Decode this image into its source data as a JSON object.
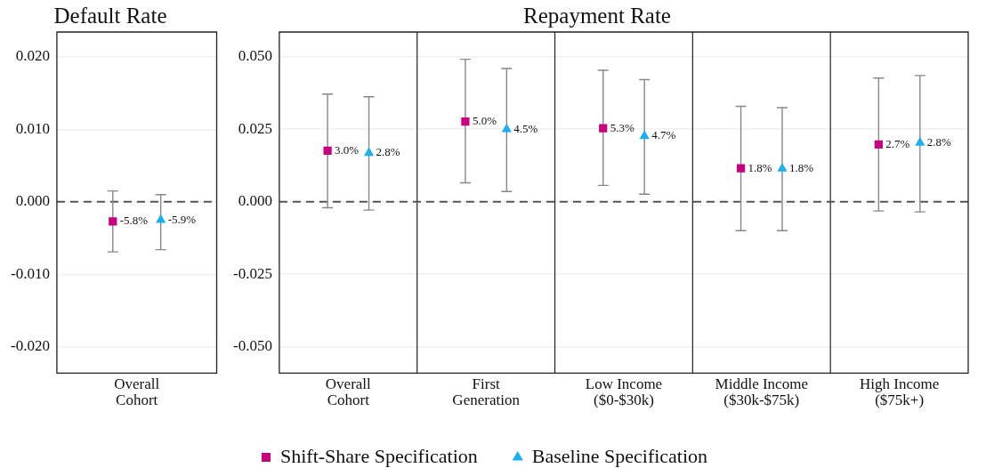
{
  "chart_data": [
    {
      "type": "scatter",
      "title": "Default Rate",
      "categories": [
        "Overall Cohort"
      ],
      "series": [
        {
          "color": "#c8007f",
          "marker": "square",
          "values": [
            -0.0027
          ],
          "errors": [
            [
              -0.0069,
              0.0015
            ]
          ]
        },
        {
          "color": "#1ab0f0",
          "marker": "triangle",
          "values": [
            -0.0025
          ],
          "errors": [
            [
              -0.0066,
              0.001
            ]
          ]
        }
      ],
      "annotations": [
        "-5.8%",
        "-5.9%"
      ],
      "ylim": [
        -0.0236,
        0.0234
      ],
      "yticks": [
        {
          "value": -0.02,
          "label": "-0.020"
        },
        {
          "value": -0.01,
          "label": "-0.010"
        },
        {
          "value": 0,
          "label": "0.000"
        },
        {
          "value": 0.01,
          "label": "0.010"
        },
        {
          "value": 0.02,
          "label": "0.020"
        }
      ],
      "grid": true,
      "legend": false,
      "ref_lines": [
        {
          "axis": "y",
          "value": 0,
          "line_style": "dashed",
          "color": "#555555"
        }
      ]
    },
    {
      "type": "scatter",
      "title": "Repayment Rate",
      "categories": [
        "Overall Cohort",
        "First Generation",
        "Low Income ($0-$30k)",
        "Middle Income ($30k-$75k)",
        "High Income ($75k+)"
      ],
      "series": [
        {
          "name": "Shift-Share Specification",
          "color": "#c8007f",
          "marker": "square",
          "values": [
            0.0176,
            0.0276,
            0.0253,
            0.0115,
            0.0197
          ],
          "errors": [
            [
              -0.0021,
              0.0371
            ],
            [
              0.0065,
              0.0491
            ],
            [
              0.0056,
              0.0453
            ],
            [
              -0.01,
              0.0329
            ],
            [
              -0.0032,
              0.0426
            ]
          ]
        },
        {
          "name": "Baseline Specification",
          "color": "#1ab0f0",
          "marker": "triangle",
          "values": [
            0.0168,
            0.025,
            0.0226,
            0.0114,
            0.0203
          ],
          "errors": [
            [
              -0.0029,
              0.0362
            ],
            [
              0.0035,
              0.0459
            ],
            [
              0.0026,
              0.0421
            ],
            [
              -0.01,
              0.0324
            ],
            [
              -0.0035,
              0.0435
            ]
          ]
        }
      ],
      "annotations": [
        "3.0%",
        "2.8%",
        "5.0%",
        "4.5%",
        "5.3%",
        "4.7%",
        "1.8%",
        "1.8%",
        "2.7%",
        "2.8%"
      ],
      "ylim": [
        -0.0591,
        0.0585
      ],
      "yticks": [
        {
          "value": -0.05,
          "label": "-0.050"
        },
        {
          "value": -0.025,
          "label": "-0.025"
        },
        {
          "value": 0,
          "label": "0.000"
        },
        {
          "value": 0.025,
          "label": "0.025"
        },
        {
          "value": 0.05,
          "label": "0.050"
        }
      ],
      "grid": true,
      "legend": "bottom",
      "ref_lines": [
        {
          "axis": "y",
          "value": 0,
          "line_style": "dashed",
          "color": "#555555"
        }
      ]
    }
  ]
}
